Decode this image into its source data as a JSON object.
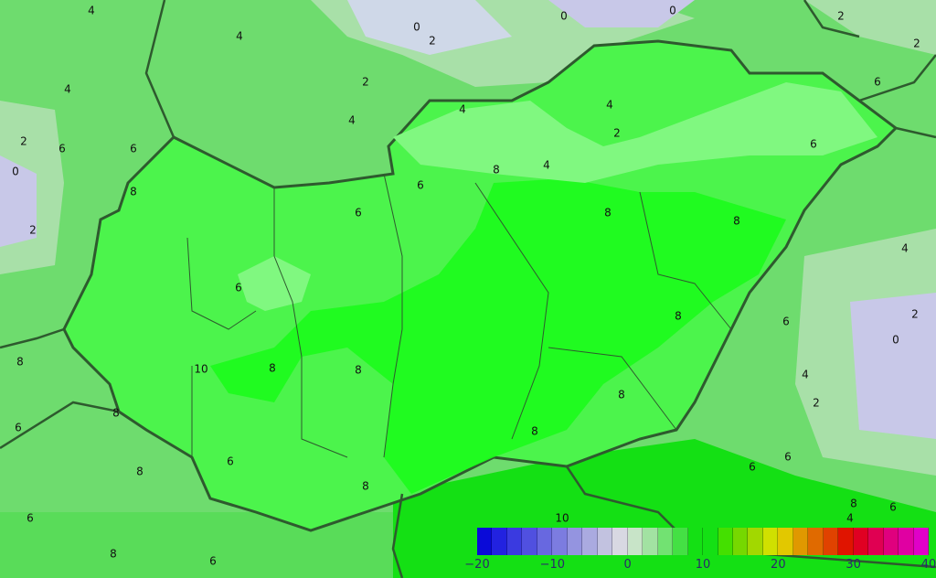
{
  "legend": {
    "min": -20,
    "max": 40,
    "step": 2,
    "tick_labels": [
      "−20",
      "−10",
      "0",
      "10",
      "20",
      "30",
      "40"
    ],
    "colors": [
      "#0a0ad8",
      "#2222e0",
      "#3a3ae0",
      "#5050e0",
      "#6868e0",
      "#7c7ce0",
      "#9494e0",
      "#aaaae0",
      "#c2c2e0",
      "#d8d8e2",
      "#c8e4c8",
      "#a2e2a2",
      "#72e272",
      "#44e044",
      "#14e014",
      "#14e014",
      "#44e000",
      "#76d800",
      "#a2d800",
      "#d0e000",
      "#e2c800",
      "#e09800",
      "#e06a00",
      "#e04200",
      "#e01400",
      "#e00022",
      "#e00052",
      "#e0007e",
      "#e000a2",
      "#e000c8"
    ]
  },
  "map": {
    "colors": {
      "outside": "#6edc6e",
      "hungary": "#4cf44c",
      "core": "#1cfc1c",
      "cold": "#c8c8e8",
      "cool": "#a8e0a8",
      "border": "#2e5a2e"
    },
    "contour_labels": [
      "4",
      "4",
      "0",
      "0",
      "2",
      "2",
      "4",
      "4",
      "4",
      "2",
      "0",
      "2",
      "6",
      "6",
      "8",
      "4",
      "4",
      "2",
      "6",
      "8",
      "8",
      "6",
      "6",
      "8",
      "10",
      "8",
      "8",
      "8",
      "8",
      "6",
      "6",
      "8",
      "8",
      "6",
      "6",
      "4",
      "2",
      "0",
      "6",
      "4",
      "2",
      "8",
      "6",
      "6",
      "8",
      "6",
      "4",
      "2",
      "2",
      "0",
      "6",
      "10",
      "8",
      "8",
      "6",
      "8"
    ]
  }
}
